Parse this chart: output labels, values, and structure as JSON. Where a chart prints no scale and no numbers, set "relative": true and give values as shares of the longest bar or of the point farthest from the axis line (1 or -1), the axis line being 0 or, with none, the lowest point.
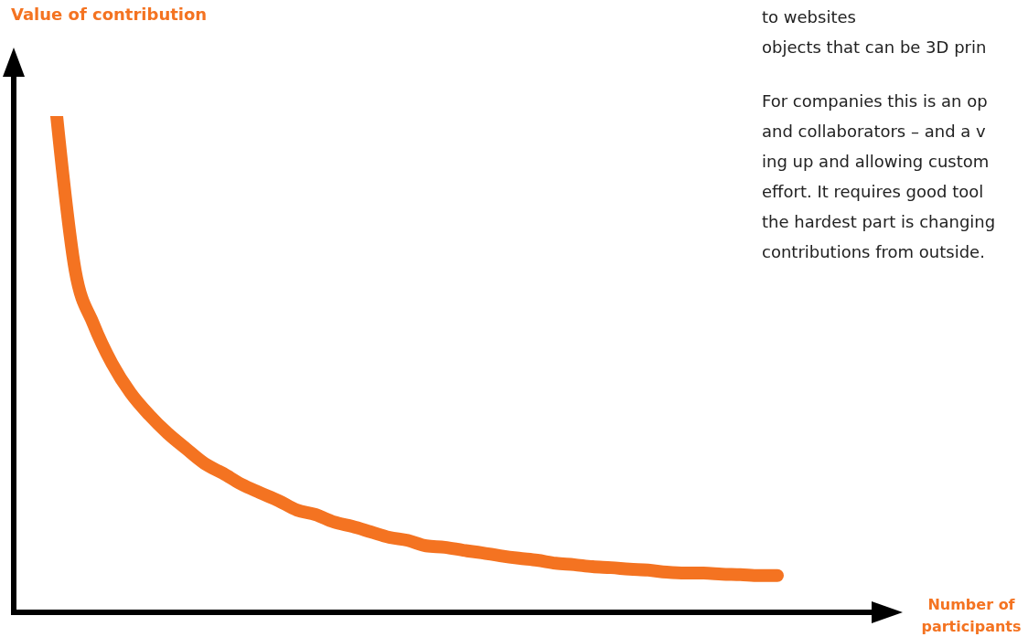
{
  "chart_data": {
    "type": "line",
    "relative": true,
    "color": "#f47321",
    "legend": false,
    "grid": false,
    "categories": [
      null,
      null,
      null,
      null,
      null,
      null,
      null,
      null,
      null,
      null,
      null,
      null,
      null,
      null,
      null,
      null,
      null,
      null,
      null,
      null,
      null,
      null,
      null,
      null,
      null,
      null,
      null,
      null,
      null,
      null,
      null,
      null,
      null,
      null,
      null,
      null,
      null,
      null,
      null,
      null
    ],
    "values": [
      1.0,
      0.689,
      0.58,
      0.501,
      0.442,
      0.398,
      0.361,
      0.33,
      0.3,
      0.28,
      0.258,
      0.241,
      0.225,
      0.206,
      0.197,
      0.182,
      0.173,
      0.162,
      0.151,
      0.145,
      0.134,
      0.131,
      0.125,
      0.12,
      0.114,
      0.109,
      0.105,
      0.099,
      0.096,
      0.092,
      0.09,
      0.087,
      0.085,
      0.081,
      0.079,
      0.079,
      0.077,
      0.076,
      0.074,
      0.074
    ],
    "annotations": [
      "Value of contribution",
      "Number of participants",
      "to websites",
      "objects that can be 3D prin",
      "For companies this is an op",
      "and collaborators – and a v",
      "ing up and allowing custom",
      "effort. It requires good tool",
      "the hardest part is changing",
      "contributions from outside."
    ]
  }
}
